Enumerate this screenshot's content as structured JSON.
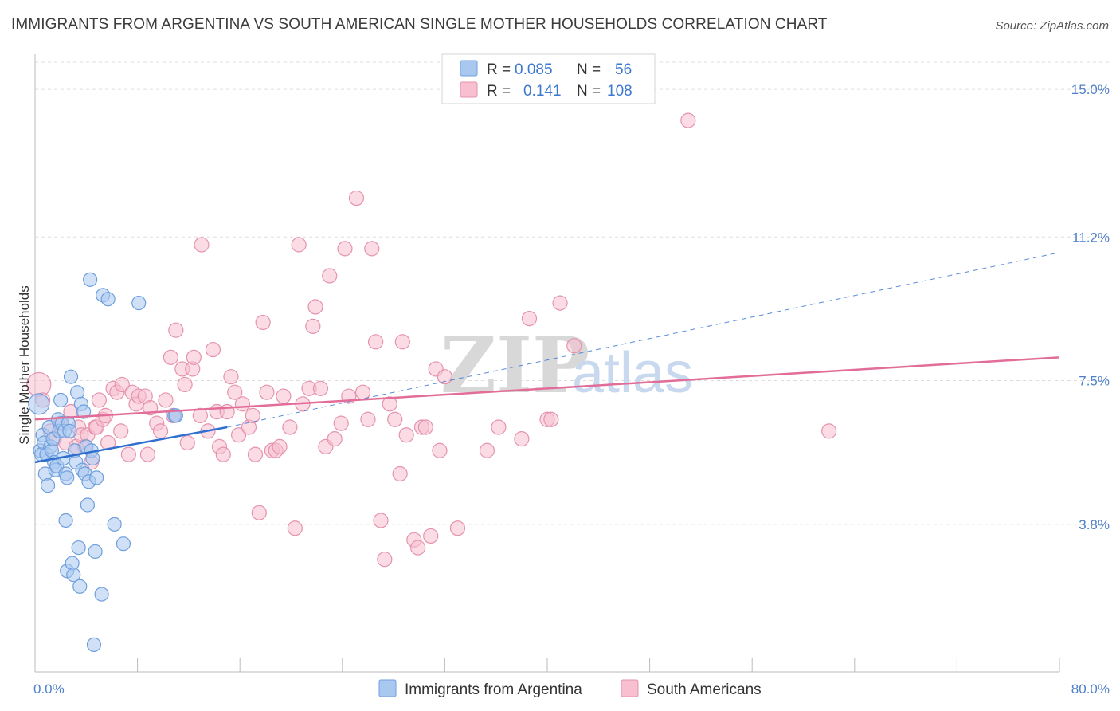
{
  "title": "IMMIGRANTS FROM ARGENTINA VS SOUTH AMERICAN SINGLE MOTHER HOUSEHOLDS CORRELATION CHART",
  "source": "Source: ZipAtlas.com",
  "watermark": {
    "zip": "ZIP",
    "atlas": "atlas"
  },
  "legend": {
    "rows": [
      {
        "r_label": "R =",
        "r_value": "0.085",
        "n_label": "N =",
        "n_value": "56"
      },
      {
        "r_label": "R =",
        "r_value": "0.141",
        "n_label": "N =",
        "n_value": "108"
      }
    ]
  },
  "colors": {
    "blue_fill": "#a9c8f0",
    "blue_stroke": "#6e9fdc",
    "blue_line": "#2f6fd0",
    "pink_fill": "#f7bfd0",
    "pink_stroke": "#e592ae",
    "pink_line": "#e26d98",
    "grid": "#dddddd",
    "tick_text": "#4f80c9"
  },
  "chart_data": {
    "type": "scatter",
    "title": "IMMIGRANTS FROM ARGENTINA VS SOUTH AMERICAN SINGLE MOTHER HOUSEHOLDS CORRELATION CHART",
    "xlabel": "",
    "ylabel": "Single Mother Households",
    "xlim": [
      0,
      80
    ],
    "ylim": [
      0,
      15.7
    ],
    "x_tick_labels": [
      "0.0%",
      "80.0%"
    ],
    "y_ticks": [
      3.8,
      7.5,
      11.2,
      15.0
    ],
    "y_tick_labels": [
      "3.8%",
      "7.5%",
      "11.2%",
      "15.0%"
    ],
    "grid": true,
    "legend_position": "top-center",
    "series": [
      {
        "name": "Immigrants from Argentina",
        "r": 0.085,
        "n": 56,
        "trend": {
          "x0": 0.0,
          "y0": 5.4,
          "x1": 15.0,
          "y1": 6.3
        },
        "trend_dashed": {
          "x0": 15.0,
          "y0": 6.3,
          "x1": 80.0,
          "y1": 10.8
        },
        "points": [
          [
            0.3,
            6.9
          ],
          [
            0.4,
            5.7
          ],
          [
            0.5,
            5.6
          ],
          [
            0.6,
            6.1
          ],
          [
            0.7,
            5.9
          ],
          [
            0.8,
            5.1
          ],
          [
            0.9,
            5.6
          ],
          [
            1.0,
            4.8
          ],
          [
            1.1,
            6.3
          ],
          [
            1.2,
            5.8
          ],
          [
            1.3,
            5.7
          ],
          [
            1.4,
            6.0
          ],
          [
            1.5,
            5.4
          ],
          [
            1.6,
            5.2
          ],
          [
            1.7,
            5.3
          ],
          [
            1.8,
            6.5
          ],
          [
            1.9,
            6.2
          ],
          [
            2.0,
            7.0
          ],
          [
            2.1,
            6.4
          ],
          [
            2.2,
            5.5
          ],
          [
            2.3,
            6.2
          ],
          [
            2.4,
            5.1
          ],
          [
            2.4,
            3.9
          ],
          [
            2.5,
            5.0
          ],
          [
            2.5,
            2.6
          ],
          [
            2.6,
            6.4
          ],
          [
            2.7,
            6.2
          ],
          [
            2.8,
            7.6
          ],
          [
            2.9,
            2.8
          ],
          [
            3.0,
            2.5
          ],
          [
            3.1,
            5.7
          ],
          [
            3.2,
            5.4
          ],
          [
            3.3,
            7.2
          ],
          [
            3.4,
            3.2
          ],
          [
            3.5,
            2.2
          ],
          [
            3.6,
            6.9
          ],
          [
            3.7,
            5.2
          ],
          [
            3.8,
            6.7
          ],
          [
            3.9,
            5.1
          ],
          [
            4.0,
            5.8
          ],
          [
            4.1,
            4.3
          ],
          [
            4.2,
            4.9
          ],
          [
            4.3,
            10.1
          ],
          [
            4.4,
            5.7
          ],
          [
            4.5,
            5.5
          ],
          [
            4.6,
            0.7
          ],
          [
            4.7,
            3.1
          ],
          [
            4.8,
            5.0
          ],
          [
            5.2,
            2.0
          ],
          [
            5.3,
            9.7
          ],
          [
            5.7,
            9.6
          ],
          [
            6.2,
            3.8
          ],
          [
            6.9,
            3.3
          ],
          [
            8.1,
            9.5
          ],
          [
            10.9,
            6.6
          ],
          [
            11.0,
            6.6
          ]
        ]
      },
      {
        "name": "South Americans",
        "r": 0.141,
        "n": 108,
        "trend": {
          "x0": 0.0,
          "y0": 6.5,
          "x1": 80.0,
          "y1": 8.1
        },
        "points": [
          [
            0.3,
            7.4
          ],
          [
            0.6,
            7.0
          ],
          [
            1.2,
            6.2
          ],
          [
            1.5,
            6.0
          ],
          [
            2.0,
            6.4
          ],
          [
            2.4,
            5.9
          ],
          [
            2.8,
            6.7
          ],
          [
            3.2,
            5.8
          ],
          [
            3.4,
            6.3
          ],
          [
            3.6,
            6.1
          ],
          [
            3.9,
            5.8
          ],
          [
            4.1,
            6.1
          ],
          [
            4.4,
            5.4
          ],
          [
            4.7,
            6.3
          ],
          [
            4.8,
            6.3
          ],
          [
            5.0,
            7.0
          ],
          [
            5.3,
            6.5
          ],
          [
            5.5,
            6.6
          ],
          [
            5.7,
            5.9
          ],
          [
            6.1,
            7.3
          ],
          [
            6.4,
            7.2
          ],
          [
            6.7,
            6.2
          ],
          [
            6.8,
            7.4
          ],
          [
            7.3,
            5.6
          ],
          [
            7.6,
            7.2
          ],
          [
            7.9,
            6.9
          ],
          [
            8.1,
            7.1
          ],
          [
            8.6,
            7.1
          ],
          [
            8.8,
            5.6
          ],
          [
            9.0,
            6.8
          ],
          [
            9.5,
            6.4
          ],
          [
            9.8,
            6.2
          ],
          [
            10.2,
            7.0
          ],
          [
            10.6,
            8.1
          ],
          [
            10.8,
            6.6
          ],
          [
            11.0,
            8.8
          ],
          [
            11.5,
            7.8
          ],
          [
            11.7,
            7.4
          ],
          [
            11.9,
            5.9
          ],
          [
            12.3,
            7.8
          ],
          [
            12.4,
            8.1
          ],
          [
            12.9,
            6.6
          ],
          [
            13.0,
            11.0
          ],
          [
            13.5,
            6.2
          ],
          [
            13.9,
            8.3
          ],
          [
            14.2,
            6.7
          ],
          [
            14.4,
            5.8
          ],
          [
            14.7,
            5.6
          ],
          [
            15.0,
            6.7
          ],
          [
            15.3,
            7.6
          ],
          [
            15.6,
            7.2
          ],
          [
            15.9,
            6.1
          ],
          [
            16.2,
            6.9
          ],
          [
            16.7,
            6.3
          ],
          [
            17.0,
            6.6
          ],
          [
            17.2,
            5.6
          ],
          [
            17.5,
            4.1
          ],
          [
            17.8,
            9.0
          ],
          [
            18.1,
            7.2
          ],
          [
            18.5,
            5.7
          ],
          [
            18.8,
            5.7
          ],
          [
            19.1,
            5.8
          ],
          [
            19.4,
            7.1
          ],
          [
            19.9,
            6.3
          ],
          [
            20.3,
            3.7
          ],
          [
            20.6,
            11.0
          ],
          [
            20.9,
            6.9
          ],
          [
            21.4,
            7.3
          ],
          [
            21.7,
            8.9
          ],
          [
            21.9,
            9.4
          ],
          [
            22.3,
            7.3
          ],
          [
            22.7,
            5.8
          ],
          [
            23.0,
            10.2
          ],
          [
            23.4,
            6.0
          ],
          [
            23.9,
            6.4
          ],
          [
            24.2,
            10.9
          ],
          [
            24.5,
            7.1
          ],
          [
            25.1,
            12.2
          ],
          [
            25.6,
            7.2
          ],
          [
            26.0,
            6.5
          ],
          [
            26.3,
            10.9
          ],
          [
            26.6,
            8.5
          ],
          [
            27.0,
            3.9
          ],
          [
            27.3,
            2.9
          ],
          [
            27.7,
            6.9
          ],
          [
            28.1,
            6.5
          ],
          [
            28.5,
            5.1
          ],
          [
            28.7,
            8.5
          ],
          [
            29.0,
            6.1
          ],
          [
            29.6,
            3.4
          ],
          [
            29.9,
            3.2
          ],
          [
            30.2,
            6.3
          ],
          [
            30.5,
            6.3
          ],
          [
            30.9,
            3.5
          ],
          [
            31.3,
            7.8
          ],
          [
            31.6,
            5.7
          ],
          [
            32.0,
            7.6
          ],
          [
            33.0,
            3.7
          ],
          [
            35.3,
            5.7
          ],
          [
            36.2,
            6.3
          ],
          [
            38.0,
            6.0
          ],
          [
            38.6,
            9.1
          ],
          [
            40.0,
            6.5
          ],
          [
            40.3,
            6.5
          ],
          [
            41.0,
            9.5
          ],
          [
            42.1,
            8.4
          ],
          [
            51.0,
            14.2
          ],
          [
            62.0,
            6.2
          ]
        ]
      }
    ]
  },
  "bottom_legend": [
    {
      "label": "Immigrants from Argentina"
    },
    {
      "label": "South Americans"
    }
  ]
}
